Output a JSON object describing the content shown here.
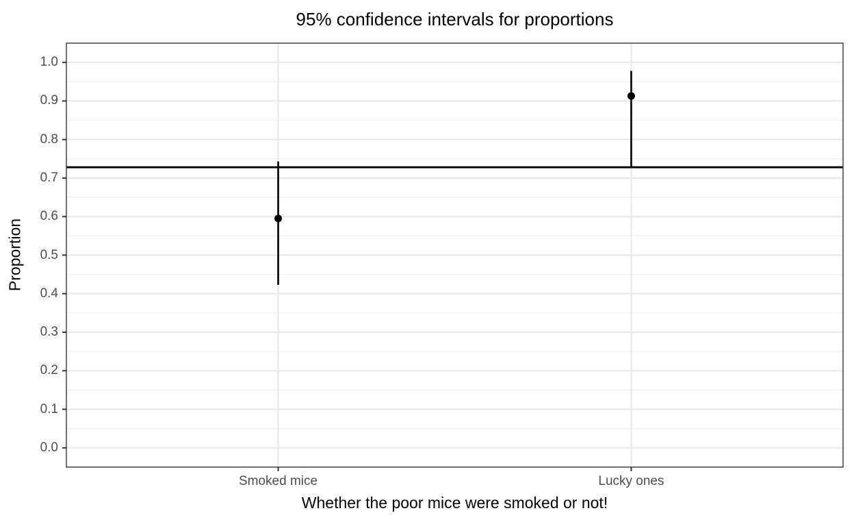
{
  "chart_data": {
    "type": "scatter",
    "subtype": "pointrange-confidence-intervals",
    "title": "95% confidence intervals for proportions",
    "xlabel": "Whether the poor mice were smoked or not!",
    "ylabel": "Proportion",
    "categories": [
      "Smoked mice",
      "Lucky ones"
    ],
    "points": [
      {
        "category": "Smoked mice",
        "estimate": 0.595,
        "ci_low": 0.423,
        "ci_high": 0.743
      },
      {
        "category": "Lucky ones",
        "estimate": 0.913,
        "ci_low": 0.728,
        "ci_high": 0.978
      }
    ],
    "reference_line": 0.728,
    "ylim": [
      -0.05,
      1.05
    ],
    "y_major_ticks": [
      0.0,
      0.1,
      0.2,
      0.3,
      0.4,
      0.5,
      0.6,
      0.7,
      0.8,
      0.9,
      1.0
    ],
    "y_tick_labels": [
      "0.0",
      "0.1",
      "0.2",
      "0.3",
      "0.4",
      "0.5",
      "0.6",
      "0.7",
      "0.8",
      "0.9",
      "1.0"
    ],
    "y_minor_ticks": [
      0.05,
      0.15,
      0.25,
      0.35,
      0.45,
      0.55,
      0.65,
      0.75,
      0.85,
      0.95
    ],
    "grid": true,
    "legend": "none",
    "colors": {
      "point": "#000000",
      "interval_line": "#000000",
      "reference_line": "#000000",
      "grid_major": "#e7e7e7",
      "grid_minor": "#f2f2f2",
      "panel_border": "#333333",
      "tick_mark": "#333333",
      "tick_label": "#4d4d4d",
      "axis_title": "#000000",
      "background": "#ffffff"
    }
  }
}
